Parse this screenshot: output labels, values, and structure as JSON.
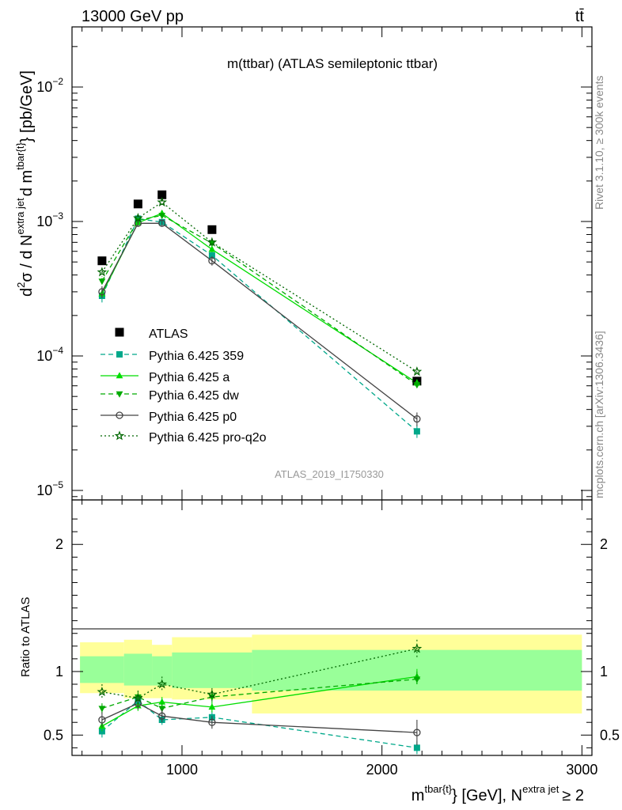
{
  "header": {
    "energy_label": "13000 GeV pp",
    "process_label": "tt̄"
  },
  "side_labels": {
    "rivet": "Rivet 3.1.10, ≥ 300k events",
    "mcplots": "mcplots.cern.ch [arXiv:1306.3436]"
  },
  "chart_data": [
    {
      "type": "scatter",
      "panel": "main",
      "title": "m(ttbar) (ATLAS semileptonic ttbar)",
      "analysis_id": "ATLAS_2019_I1750330",
      "ylabel": "d²σ / d N^extra jet d m^tbar{t} [pb/GeV]",
      "ylabel_parts": {
        "a": "d",
        "a_sup": "2",
        "b": "σ / d N",
        "b_sup": "extra jet",
        "c": "d m",
        "c_sup": "tbar{t}",
        "d": "} [pb/GeV]"
      },
      "yscale": "log",
      "ylim": [
        8.5e-06,
        0.028
      ],
      "xlim": [
        450,
        3050
      ],
      "yticks": [
        {
          "value": 1e-05,
          "base": "10",
          "exp": "−5"
        },
        {
          "value": 0.0001,
          "base": "10",
          "exp": "−4"
        },
        {
          "value": 0.001,
          "base": "10",
          "exp": "−3"
        },
        {
          "value": 0.01,
          "base": "10",
          "exp": "−2"
        }
      ],
      "legend_position": "bottom-left",
      "series": [
        {
          "name": "ATLAS",
          "color": "#000000",
          "marker": "square-filled",
          "line": "none",
          "x": [
            600,
            780,
            900,
            1150,
            2175
          ],
          "y": [
            0.00051,
            0.00135,
            0.00158,
            0.00087,
            6.5e-05
          ]
        },
        {
          "name": "Pythia 6.425 359",
          "color": "#00a88a",
          "marker": "square-filled",
          "line": "dashed",
          "x": [
            600,
            780,
            900,
            1150,
            2175
          ],
          "y": [
            0.00028,
            0.00105,
            0.00099,
            0.00056,
            2.75e-05
          ],
          "yerr": [
            3e-05,
            5e-05,
            5e-05,
            3e-05,
            3e-06
          ]
        },
        {
          "name": "Pythia 6.425 a",
          "color": "#00dd00",
          "marker": "triangle-up-filled",
          "line": "solid",
          "x": [
            600,
            780,
            900,
            1150,
            2175
          ],
          "y": [
            0.00029,
            0.00098,
            0.00115,
            0.00062,
            6.3e-05
          ],
          "yerr": [
            2e-05,
            4e-05,
            5e-05,
            3e-05,
            4e-06
          ]
        },
        {
          "name": "Pythia 6.425 dw",
          "color": "#00aa00",
          "marker": "triangle-down-filled",
          "line": "dashed",
          "x": [
            600,
            780,
            900,
            1150,
            2175
          ],
          "y": [
            0.00036,
            0.00102,
            0.00111,
            0.00069,
            6.1e-05
          ],
          "yerr": [
            2e-05,
            4e-05,
            5e-05,
            3e-05,
            4e-06
          ]
        },
        {
          "name": "Pythia 6.425 p0",
          "color": "#444444",
          "marker": "circle-open",
          "line": "solid",
          "x": [
            600,
            780,
            900,
            1150,
            2175
          ],
          "y": [
            0.0003,
            0.00097,
            0.00097,
            0.00051,
            3.4e-05
          ],
          "yerr": [
            3e-05,
            5e-05,
            5e-05,
            4e-05,
            4e-06
          ]
        },
        {
          "name": "Pythia 6.425 pro-q2o",
          "color": "#006600",
          "marker": "star-open",
          "line": "dotted",
          "x": [
            600,
            780,
            900,
            1150,
            2175
          ],
          "y": [
            0.00042,
            0.00106,
            0.00139,
            0.0007,
            7.65e-05
          ],
          "yerr": [
            3e-05,
            5e-05,
            6e-05,
            4e-05,
            5e-06
          ]
        }
      ]
    },
    {
      "type": "scatter",
      "panel": "ratio",
      "ylabel": "Ratio to ATLAS",
      "xlabel": "m^tbar{t}} [GeV], N^extra jet ≥ 2",
      "xlabel_parts": {
        "a": "m",
        "a_sup": "tbar{t}",
        "b": "} [GeV], N",
        "b_sup": "extra jet",
        "c": "≥ 2"
      },
      "xlim": [
        450,
        3050
      ],
      "ylim": [
        0.34,
        2.35
      ],
      "xticks": [
        1000,
        2000,
        3000
      ],
      "yticks": [
        0.5,
        1,
        2
      ],
      "reference_line": 1,
      "bands": [
        {
          "name": "outer",
          "color": "#ffff99",
          "bins": [
            [
              490,
              710,
              0.83,
              1.23
            ],
            [
              710,
              850,
              0.79,
              1.25
            ],
            [
              850,
              950,
              0.79,
              1.21
            ],
            [
              950,
              1350,
              0.78,
              1.27
            ],
            [
              1350,
              3000,
              0.67,
              1.29
            ]
          ]
        },
        {
          "name": "inner",
          "color": "#99ff99",
          "bins": [
            [
              490,
              710,
              0.91,
              1.12
            ],
            [
              710,
              850,
              0.89,
              1.14
            ],
            [
              850,
              950,
              0.89,
              1.12
            ],
            [
              950,
              1350,
              0.87,
              1.15
            ],
            [
              1350,
              3000,
              0.85,
              1.17
            ]
          ]
        }
      ],
      "series": [
        {
          "name": "Pythia 6.425 359",
          "color": "#00a88a",
          "marker": "square-filled",
          "line": "dashed",
          "x": [
            600,
            780,
            900,
            1150,
            2175
          ],
          "y": [
            0.53,
            0.77,
            0.62,
            0.64,
            0.4
          ],
          "yerr": [
            0.05,
            0.05,
            0.06,
            0.05,
            0.05
          ]
        },
        {
          "name": "Pythia 6.425 a",
          "color": "#00dd00",
          "marker": "triangle-up-filled",
          "line": "solid",
          "x": [
            600,
            780,
            900,
            1150,
            2175
          ],
          "y": [
            0.57,
            0.73,
            0.76,
            0.72,
            0.96
          ],
          "yerr": [
            0.04,
            0.04,
            0.04,
            0.04,
            0.06
          ]
        },
        {
          "name": "Pythia 6.425 dw",
          "color": "#00aa00",
          "marker": "triangle-down-filled",
          "line": "dashed",
          "x": [
            600,
            780,
            900,
            1150,
            2175
          ],
          "y": [
            0.71,
            0.8,
            0.71,
            0.8,
            0.94
          ],
          "yerr": [
            0.04,
            0.04,
            0.04,
            0.04,
            0.06
          ]
        },
        {
          "name": "Pythia 6.425 p0",
          "color": "#444444",
          "marker": "circle-open",
          "line": "solid",
          "x": [
            600,
            780,
            900,
            1150,
            2175
          ],
          "y": [
            0.62,
            0.75,
            0.65,
            0.6,
            0.52
          ],
          "yerr": [
            0.06,
            0.05,
            0.05,
            0.05,
            0.1
          ]
        },
        {
          "name": "Pythia 6.425 pro-q2o",
          "color": "#006600",
          "marker": "star-open",
          "line": "dotted",
          "x": [
            600,
            780,
            900,
            1150,
            2175
          ],
          "y": [
            0.84,
            0.79,
            0.9,
            0.82,
            1.18
          ],
          "yerr": [
            0.06,
            0.06,
            0.06,
            0.05,
            0.07
          ]
        }
      ]
    }
  ]
}
